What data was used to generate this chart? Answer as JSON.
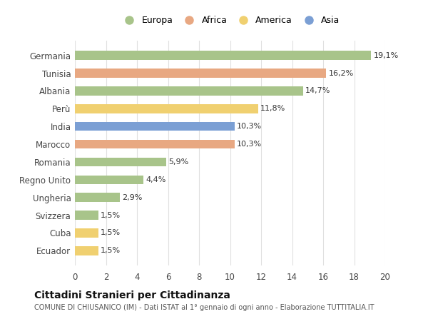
{
  "countries": [
    "Germania",
    "Tunisia",
    "Albania",
    "Perù",
    "India",
    "Marocco",
    "Romania",
    "Regno Unito",
    "Ungheria",
    "Svizzera",
    "Cuba",
    "Ecuador"
  ],
  "values": [
    19.1,
    16.2,
    14.7,
    11.8,
    10.3,
    10.3,
    5.9,
    4.4,
    2.9,
    1.5,
    1.5,
    1.5
  ],
  "labels": [
    "19,1%",
    "16,2%",
    "14,7%",
    "11,8%",
    "10,3%",
    "10,3%",
    "5,9%",
    "4,4%",
    "2,9%",
    "1,5%",
    "1,5%",
    "1,5%"
  ],
  "continents": [
    "Europa",
    "Africa",
    "Europa",
    "America",
    "Asia",
    "Africa",
    "Europa",
    "Europa",
    "Europa",
    "Europa",
    "America",
    "America"
  ],
  "colors": {
    "Europa": "#a8c48a",
    "Africa": "#e8a882",
    "America": "#f0d070",
    "Asia": "#7b9fd4"
  },
  "legend_order": [
    "Europa",
    "Africa",
    "America",
    "Asia"
  ],
  "title": "Cittadini Stranieri per Cittadinanza",
  "subtitle": "COMUNE DI CHIUSANICO (IM) - Dati ISTAT al 1° gennaio di ogni anno - Elaborazione TUTTITALIA.IT",
  "xlim": [
    0,
    20
  ],
  "xticks": [
    0,
    2,
    4,
    6,
    8,
    10,
    12,
    14,
    16,
    18,
    20
  ],
  "background_color": "#ffffff",
  "grid_color": "#e0e0e0"
}
